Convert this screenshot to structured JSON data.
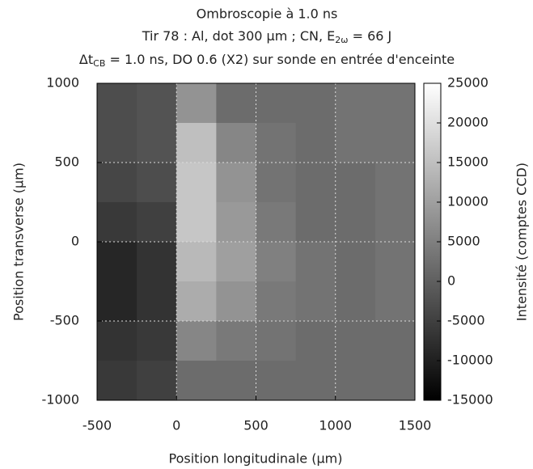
{
  "chart_data": {
    "type": "heatmap",
    "title": "Ombroscopie à 1.0 ns",
    "subtitle": [
      "Tir 78 : Al, dot 300 µm ; CN, E",
      "2ω",
      " = 66 J"
    ],
    "subtitle2": [
      "Δt",
      "CB",
      " = 1.0 ns, DO 0.6 (X2) sur sonde en entrée d'enceinte"
    ],
    "xlabel": "Position longitudinale (µm)",
    "ylabel": "Position transverse (µm)",
    "cblabel": "Intensité (comptes CCD)",
    "xbins": [
      -500,
      -250,
      0,
      250,
      500,
      750,
      1000,
      1250,
      1500
    ],
    "ybins": [
      1000,
      750,
      500,
      250,
      0,
      -250,
      -500,
      -750,
      -1000
    ],
    "z": [
      [
        -3000,
        -2000,
        8000,
        2000,
        2000,
        2000,
        3000,
        3000
      ],
      [
        -3000,
        -2000,
        15000,
        6000,
        3000,
        2000,
        3000,
        3000
      ],
      [
        -4000,
        -3000,
        16000,
        8000,
        3000,
        2000,
        2000,
        3000
      ],
      [
        -6000,
        -5000,
        16000,
        9000,
        4000,
        2000,
        2000,
        3000
      ],
      [
        -9000,
        -7000,
        14000,
        10000,
        5000,
        3000,
        2000,
        3000
      ],
      [
        -9000,
        -7000,
        12000,
        8000,
        4000,
        3000,
        2000,
        3000
      ],
      [
        -7000,
        -6000,
        6000,
        4000,
        3000,
        2000,
        2000,
        2000
      ],
      [
        -6000,
        -5000,
        2000,
        2000,
        2000,
        2000,
        2000,
        2000
      ]
    ],
    "xlim": [
      -500,
      1500
    ],
    "xticks": [
      -500,
      0,
      500,
      1000,
      1500
    ],
    "ylim": [
      -1000,
      1000
    ],
    "yticks": [
      -1000,
      -500,
      0,
      500,
      1000
    ],
    "cblim": [
      -15000,
      25000
    ],
    "cbticks": [
      -15000,
      -10000,
      -5000,
      0,
      5000,
      10000,
      15000,
      20000,
      25000
    ],
    "colormap": [
      "#000000",
      "#ffffff"
    ],
    "grid": true
  }
}
